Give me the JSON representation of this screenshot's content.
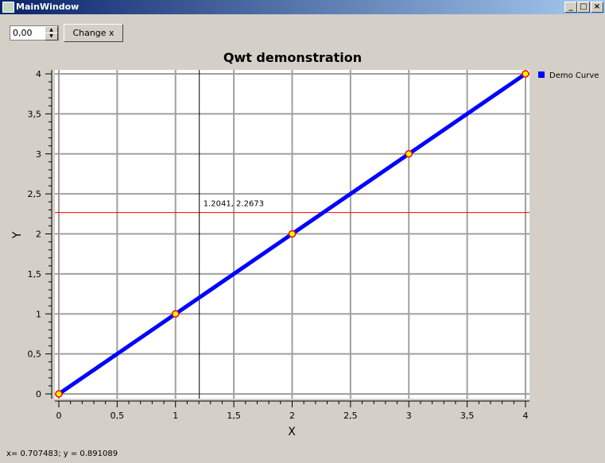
{
  "window": {
    "title": "MainWindow"
  },
  "toolbar": {
    "spin_value": "0,00",
    "change_label": "Change x"
  },
  "status": "x= 0.707483; y = 0.891089",
  "chart_data": {
    "type": "line",
    "title": "Qwt demonstration",
    "xlabel": "X",
    "ylabel": "Y",
    "xlim": [
      0,
      4
    ],
    "ylim": [
      0,
      4
    ],
    "grid": true,
    "legend_placement": "right",
    "x_ticks": [
      "0",
      "0,5",
      "1",
      "1,5",
      "2",
      "2,5",
      "3",
      "3,5",
      "4"
    ],
    "y_ticks": [
      "0",
      "0,5",
      "1",
      "1,5",
      "2",
      "2,5",
      "3",
      "3,5",
      "4"
    ],
    "series": [
      {
        "name": "Demo Curve",
        "x": [
          0,
          1,
          2,
          3,
          4
        ],
        "y": [
          0,
          1,
          2,
          3,
          4
        ],
        "color": "#0000ff",
        "marker_fill": "#ffff00",
        "marker_edge": "#ff0000"
      }
    ],
    "marker": {
      "x": 1.2041,
      "y": 2.2673,
      "label": "1.2041, 2.2673"
    }
  }
}
